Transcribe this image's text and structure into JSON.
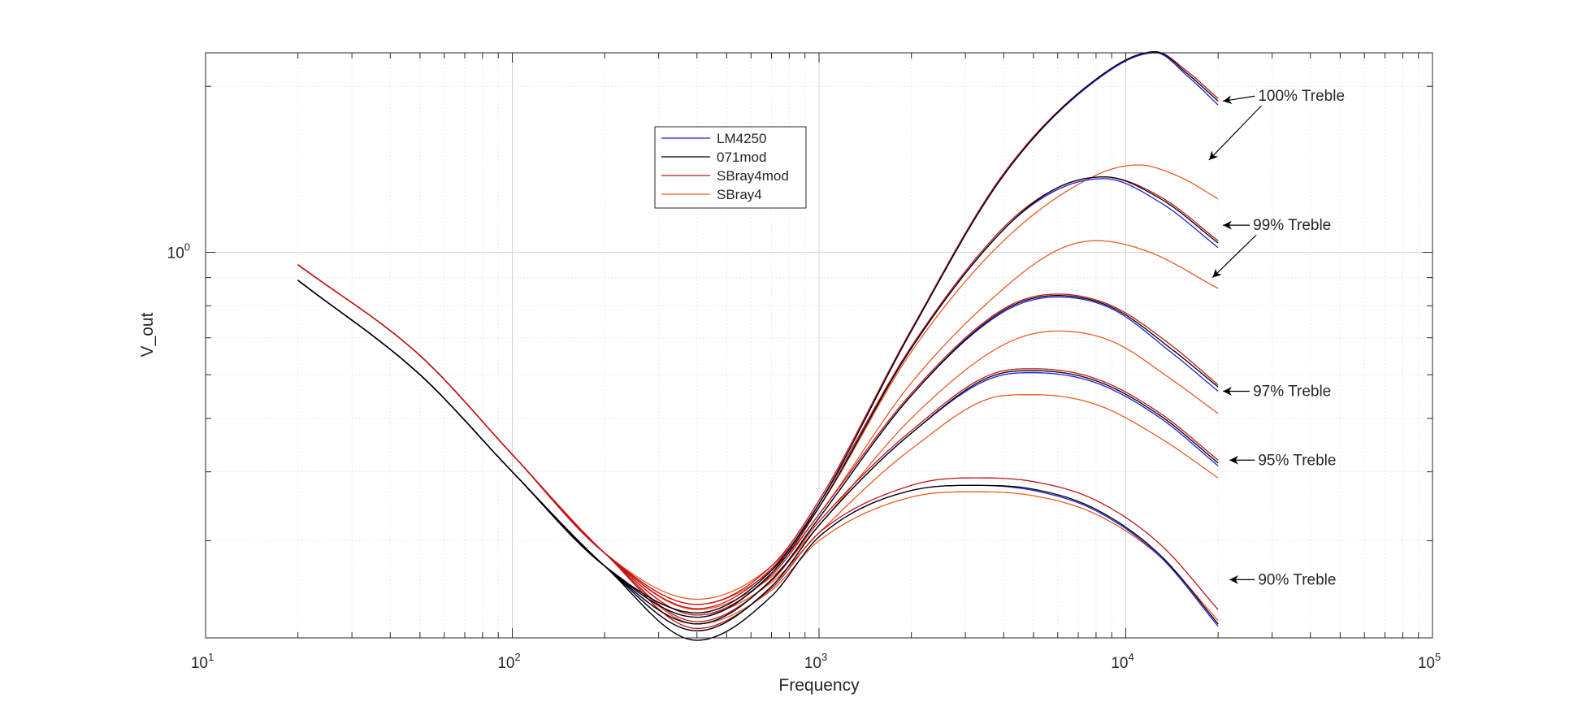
{
  "chart_data": {
    "type": "line",
    "title": "",
    "xlabel": "Frequency",
    "ylabel": "V_out",
    "xscale": "log",
    "yscale": "log",
    "xlim": [
      10,
      100000
    ],
    "ylim": [
      0.2,
      2.3
    ],
    "grid": "on (major and minor)",
    "legend_placement": "upper-middle",
    "x_ticks": [
      {
        "base": "10",
        "exp": "1"
      },
      {
        "base": "10",
        "exp": "2"
      },
      {
        "base": "10",
        "exp": "3"
      },
      {
        "base": "10",
        "exp": "4"
      },
      {
        "base": "10",
        "exp": "5"
      }
    ],
    "y_ticks": [
      {
        "base": "10",
        "exp": "0",
        "value": 1
      }
    ],
    "series": [
      {
        "name": "LM4250",
        "color": "#1f1fe0"
      },
      {
        "name": "071mod",
        "color": "#000000"
      },
      {
        "name": "SBray4mod",
        "color": "#c0141a"
      },
      {
        "name": "SBray4",
        "color": "#ee5a22"
      }
    ],
    "curves": [
      {
        "series": 0,
        "group": "100%",
        "points": [
          [
            20,
            0.89
          ],
          [
            50,
            0.6
          ],
          [
            100,
            0.4
          ],
          [
            200,
            0.27
          ],
          [
            400,
            0.222
          ],
          [
            700,
            0.265
          ],
          [
            1000,
            0.35
          ],
          [
            2000,
            0.72
          ],
          [
            4000,
            1.38
          ],
          [
            8000,
            2.05
          ],
          [
            12500,
            2.3
          ],
          [
            16000,
            2.08
          ],
          [
            20000,
            1.85
          ]
        ]
      },
      {
        "series": 1,
        "group": "100%",
        "points": [
          [
            20,
            0.89
          ],
          [
            50,
            0.6
          ],
          [
            100,
            0.4
          ],
          [
            200,
            0.27
          ],
          [
            400,
            0.222
          ],
          [
            700,
            0.265
          ],
          [
            1000,
            0.35
          ],
          [
            2000,
            0.72
          ],
          [
            4000,
            1.38
          ],
          [
            8000,
            2.06
          ],
          [
            12500,
            2.31
          ],
          [
            16000,
            2.1
          ],
          [
            20000,
            1.88
          ]
        ]
      },
      {
        "series": 2,
        "group": "100%",
        "points": [
          [
            20,
            0.95
          ],
          [
            50,
            0.65
          ],
          [
            100,
            0.43
          ],
          [
            200,
            0.285
          ],
          [
            400,
            0.23
          ],
          [
            700,
            0.27
          ],
          [
            1000,
            0.355
          ],
          [
            2000,
            0.725
          ],
          [
            4000,
            1.39
          ],
          [
            8000,
            2.06
          ],
          [
            12500,
            2.31
          ],
          [
            16000,
            2.12
          ],
          [
            20000,
            1.9
          ]
        ]
      },
      {
        "series": 3,
        "group": "100%",
        "points": [
          [
            20,
            0.95
          ],
          [
            50,
            0.65
          ],
          [
            100,
            0.43
          ],
          [
            200,
            0.285
          ],
          [
            400,
            0.235
          ],
          [
            700,
            0.27
          ],
          [
            1000,
            0.345
          ],
          [
            2000,
            0.66
          ],
          [
            4000,
            1.05
          ],
          [
            8000,
            1.38
          ],
          [
            11000,
            1.44
          ],
          [
            15000,
            1.37
          ],
          [
            20000,
            1.25
          ]
        ]
      },
      {
        "series": 0,
        "group": "99%",
        "points": [
          [
            20,
            0.89
          ],
          [
            50,
            0.6
          ],
          [
            100,
            0.4
          ],
          [
            200,
            0.27
          ],
          [
            400,
            0.218
          ],
          [
            700,
            0.262
          ],
          [
            1000,
            0.345
          ],
          [
            2000,
            0.67
          ],
          [
            4000,
            1.1
          ],
          [
            6000,
            1.3
          ],
          [
            8500,
            1.36
          ],
          [
            13000,
            1.23
          ],
          [
            20000,
            1.02
          ]
        ]
      },
      {
        "series": 1,
        "group": "99%",
        "points": [
          [
            20,
            0.89
          ],
          [
            50,
            0.6
          ],
          [
            100,
            0.4
          ],
          [
            200,
            0.27
          ],
          [
            400,
            0.218
          ],
          [
            700,
            0.262
          ],
          [
            1000,
            0.345
          ],
          [
            2000,
            0.67
          ],
          [
            4000,
            1.1
          ],
          [
            6000,
            1.31
          ],
          [
            8500,
            1.37
          ],
          [
            13000,
            1.25
          ],
          [
            20000,
            1.04
          ]
        ]
      },
      {
        "series": 2,
        "group": "99%",
        "points": [
          [
            20,
            0.95
          ],
          [
            50,
            0.65
          ],
          [
            100,
            0.43
          ],
          [
            200,
            0.285
          ],
          [
            400,
            0.226
          ],
          [
            700,
            0.267
          ],
          [
            1000,
            0.35
          ],
          [
            2000,
            0.675
          ],
          [
            4000,
            1.11
          ],
          [
            6000,
            1.31
          ],
          [
            8500,
            1.37
          ],
          [
            13000,
            1.26
          ],
          [
            20000,
            1.05
          ]
        ]
      },
      {
        "series": 3,
        "group": "99%",
        "points": [
          [
            20,
            0.95
          ],
          [
            50,
            0.65
          ],
          [
            100,
            0.43
          ],
          [
            200,
            0.285
          ],
          [
            400,
            0.23
          ],
          [
            700,
            0.265
          ],
          [
            1000,
            0.335
          ],
          [
            2000,
            0.58
          ],
          [
            4000,
            0.86
          ],
          [
            6000,
            1.01
          ],
          [
            8000,
            1.05
          ],
          [
            12000,
            1.0
          ],
          [
            20000,
            0.86
          ]
        ]
      },
      {
        "series": 0,
        "group": "97%",
        "points": [
          [
            20,
            0.89
          ],
          [
            50,
            0.6
          ],
          [
            100,
            0.4
          ],
          [
            200,
            0.27
          ],
          [
            400,
            0.212
          ],
          [
            700,
            0.255
          ],
          [
            1000,
            0.33
          ],
          [
            2000,
            0.55
          ],
          [
            4000,
            0.78
          ],
          [
            6000,
            0.83
          ],
          [
            9000,
            0.79
          ],
          [
            14000,
            0.66
          ],
          [
            20000,
            0.56
          ]
        ]
      },
      {
        "series": 1,
        "group": "97%",
        "points": [
          [
            20,
            0.89
          ],
          [
            50,
            0.6
          ],
          [
            100,
            0.4
          ],
          [
            200,
            0.27
          ],
          [
            400,
            0.212
          ],
          [
            700,
            0.255
          ],
          [
            1000,
            0.33
          ],
          [
            2000,
            0.55
          ],
          [
            4000,
            0.785
          ],
          [
            6000,
            0.835
          ],
          [
            9000,
            0.795
          ],
          [
            14000,
            0.67
          ],
          [
            20000,
            0.57
          ]
        ]
      },
      {
        "series": 2,
        "group": "97%",
        "points": [
          [
            20,
            0.95
          ],
          [
            50,
            0.65
          ],
          [
            100,
            0.43
          ],
          [
            200,
            0.285
          ],
          [
            400,
            0.22
          ],
          [
            700,
            0.26
          ],
          [
            1000,
            0.335
          ],
          [
            2000,
            0.555
          ],
          [
            4000,
            0.79
          ],
          [
            6000,
            0.84
          ],
          [
            9000,
            0.8
          ],
          [
            14000,
            0.68
          ],
          [
            20000,
            0.575
          ]
        ]
      },
      {
        "series": 3,
        "group": "97%",
        "points": [
          [
            20,
            0.95
          ],
          [
            50,
            0.65
          ],
          [
            100,
            0.43
          ],
          [
            200,
            0.285
          ],
          [
            400,
            0.225
          ],
          [
            700,
            0.258
          ],
          [
            1000,
            0.32
          ],
          [
            2000,
            0.5
          ],
          [
            4000,
            0.68
          ],
          [
            6000,
            0.72
          ],
          [
            9000,
            0.69
          ],
          [
            14000,
            0.59
          ],
          [
            20000,
            0.51
          ]
        ]
      },
      {
        "series": 0,
        "group": "95%",
        "points": [
          [
            20,
            0.89
          ],
          [
            50,
            0.6
          ],
          [
            100,
            0.4
          ],
          [
            200,
            0.27
          ],
          [
            400,
            0.206
          ],
          [
            700,
            0.248
          ],
          [
            1000,
            0.32
          ],
          [
            2000,
            0.47
          ],
          [
            4000,
            0.6
          ],
          [
            5000,
            0.605
          ],
          [
            8000,
            0.58
          ],
          [
            13000,
            0.5
          ],
          [
            20000,
            0.41
          ]
        ]
      },
      {
        "series": 1,
        "group": "95%",
        "points": [
          [
            20,
            0.89
          ],
          [
            50,
            0.6
          ],
          [
            100,
            0.4
          ],
          [
            200,
            0.27
          ],
          [
            400,
            0.206
          ],
          [
            700,
            0.248
          ],
          [
            1000,
            0.32
          ],
          [
            2000,
            0.47
          ],
          [
            4000,
            0.605
          ],
          [
            5000,
            0.61
          ],
          [
            8000,
            0.585
          ],
          [
            13000,
            0.505
          ],
          [
            20000,
            0.415
          ]
        ]
      },
      {
        "series": 2,
        "group": "95%",
        "points": [
          [
            20,
            0.95
          ],
          [
            50,
            0.65
          ],
          [
            100,
            0.43
          ],
          [
            200,
            0.285
          ],
          [
            400,
            0.214
          ],
          [
            700,
            0.254
          ],
          [
            1000,
            0.325
          ],
          [
            2000,
            0.475
          ],
          [
            4000,
            0.61
          ],
          [
            5000,
            0.615
          ],
          [
            8000,
            0.59
          ],
          [
            13000,
            0.51
          ],
          [
            20000,
            0.42
          ]
        ]
      },
      {
        "series": 3,
        "group": "95%",
        "points": [
          [
            20,
            0.95
          ],
          [
            50,
            0.65
          ],
          [
            100,
            0.43
          ],
          [
            200,
            0.285
          ],
          [
            400,
            0.22
          ],
          [
            700,
            0.252
          ],
          [
            1000,
            0.31
          ],
          [
            2000,
            0.44
          ],
          [
            4000,
            0.55
          ],
          [
            5000,
            0.552
          ],
          [
            8000,
            0.53
          ],
          [
            13000,
            0.46
          ],
          [
            20000,
            0.39
          ]
        ]
      },
      {
        "series": 0,
        "group": "90%",
        "points": [
          [
            20,
            0.89
          ],
          [
            50,
            0.6
          ],
          [
            100,
            0.4
          ],
          [
            200,
            0.27
          ],
          [
            400,
            0.198
          ],
          [
            700,
            0.238
          ],
          [
            1000,
            0.305
          ],
          [
            2000,
            0.37
          ],
          [
            3200,
            0.378
          ],
          [
            5000,
            0.37
          ],
          [
            8000,
            0.34
          ],
          [
            13000,
            0.28
          ],
          [
            20000,
            0.21
          ]
        ]
      },
      {
        "series": 1,
        "group": "90%",
        "points": [
          [
            20,
            0.89
          ],
          [
            50,
            0.6
          ],
          [
            100,
            0.4
          ],
          [
            200,
            0.27
          ],
          [
            400,
            0.198
          ],
          [
            700,
            0.238
          ],
          [
            1000,
            0.305
          ],
          [
            2000,
            0.37
          ],
          [
            3200,
            0.378
          ],
          [
            5000,
            0.372
          ],
          [
            8000,
            0.342
          ],
          [
            13000,
            0.282
          ],
          [
            20000,
            0.212
          ]
        ]
      },
      {
        "series": 2,
        "group": "90%",
        "points": [
          [
            20,
            0.95
          ],
          [
            50,
            0.65
          ],
          [
            100,
            0.43
          ],
          [
            200,
            0.285
          ],
          [
            400,
            0.208
          ],
          [
            700,
            0.246
          ],
          [
            1000,
            0.31
          ],
          [
            2000,
            0.378
          ],
          [
            3200,
            0.39
          ],
          [
            5000,
            0.384
          ],
          [
            8000,
            0.355
          ],
          [
            13000,
            0.295
          ],
          [
            20000,
            0.225
          ]
        ]
      },
      {
        "series": 3,
        "group": "90%",
        "points": [
          [
            20,
            0.95
          ],
          [
            50,
            0.65
          ],
          [
            100,
            0.43
          ],
          [
            200,
            0.285
          ],
          [
            400,
            0.212
          ],
          [
            700,
            0.244
          ],
          [
            1000,
            0.3
          ],
          [
            2000,
            0.36
          ],
          [
            3200,
            0.368
          ],
          [
            5000,
            0.362
          ],
          [
            8000,
            0.335
          ],
          [
            13000,
            0.28
          ],
          [
            20000,
            0.215
          ]
        ]
      }
    ],
    "annotations": [
      {
        "text": "100% Treble",
        "label_at": [
          27000,
          1.92
        ],
        "arrows_to": [
          [
            20000,
            1.88
          ],
          [
            18000,
            1.47
          ]
        ]
      },
      {
        "text": "99% Treble",
        "label_at": [
          26000,
          1.12
        ],
        "arrows_to": [
          [
            20000,
            1.12
          ],
          [
            18500,
            0.9
          ]
        ]
      },
      {
        "text": "97% Treble",
        "label_at": [
          26000,
          0.56
        ],
        "arrows_to": [
          [
            20000,
            0.56
          ]
        ]
      },
      {
        "text": "95% Treble",
        "label_at": [
          27000,
          0.42
        ],
        "arrows_to": [
          [
            21000,
            0.42
          ]
        ]
      },
      {
        "text": "90% Treble",
        "label_at": [
          27000,
          0.255
        ],
        "arrows_to": [
          [
            21000,
            0.255
          ]
        ]
      }
    ]
  }
}
